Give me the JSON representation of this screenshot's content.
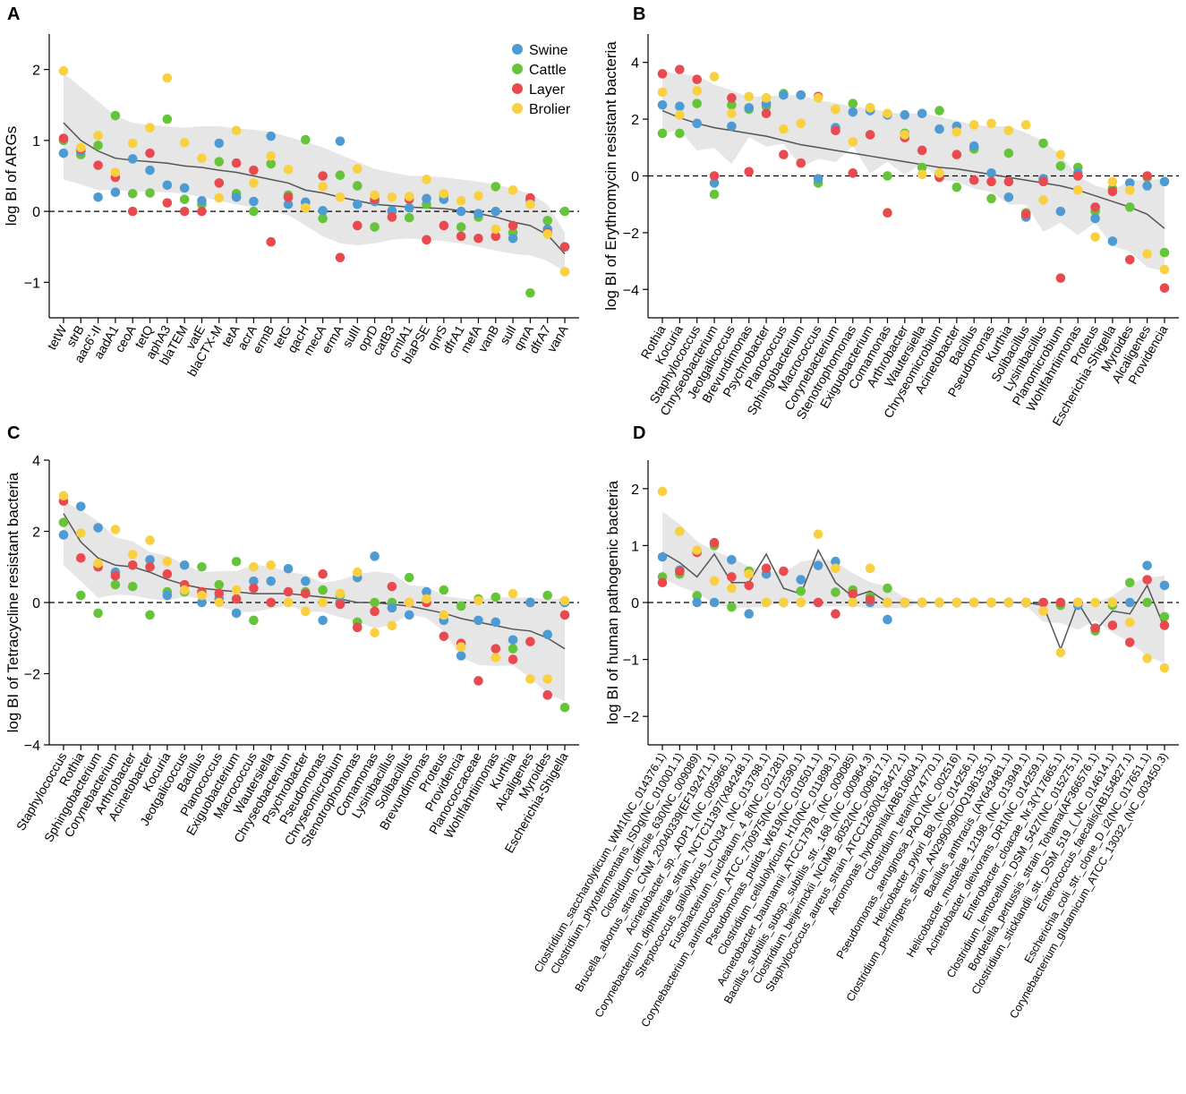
{
  "legend": {
    "labels": [
      "Swine",
      "Cattle",
      "Layer",
      "Brolier"
    ],
    "colors": [
      "#4e9bd4",
      "#66c43a",
      "#e84a50",
      "#f9d040"
    ]
  },
  "trend_color": "#555555",
  "band_color": "#e6e6e6",
  "chart_data": [
    {
      "type": "scatter",
      "panel_label": "A",
      "title": "",
      "xlabel": "",
      "ylabel": "log BI of ARGs",
      "ylim": [
        -1.5,
        2.5
      ],
      "yticks": [
        -1,
        0,
        1,
        2
      ],
      "categories": [
        "tetW",
        "strB",
        "aac6'-II",
        "aadA1",
        "ceoA",
        "tetQ",
        "aphA3",
        "blaTEM",
        "vatE",
        "blaCTX-M",
        "tetA",
        "acrA",
        "ermB",
        "tetG",
        "qacH",
        "mecA",
        "ermA",
        "sulII",
        "oprD",
        "catB3",
        "cmlA1",
        "blaPSE",
        "qnrS",
        "dfrA1",
        "mefA",
        "vanB",
        "sulI",
        "qnrA",
        "dfrA7",
        "vanA"
      ],
      "series": [
        {
          "name": "Swine",
          "values": [
            0.82,
            0.85,
            0.2,
            0.27,
            0.74,
            0.58,
            0.37,
            0.33,
            0.15,
            0.96,
            0.2,
            0.14,
            1.06,
            0.1,
            0.13,
            0.01,
            0.99,
            0.1,
            0.14,
            0.01,
            0.05,
            0.18,
            0.17,
            0.0,
            -0.03,
            0.0,
            -0.38,
            0.16,
            -0.25,
            -0.5
          ]
        },
        {
          "name": "Cattle",
          "values": [
            1.0,
            0.8,
            0.93,
            1.35,
            0.25,
            0.26,
            1.3,
            0.17,
            0.1,
            0.7,
            0.25,
            0.0,
            0.67,
            0.23,
            1.01,
            -0.1,
            0.51,
            0.36,
            -0.22,
            0.0,
            -0.09,
            0.1,
            0.23,
            -0.22,
            -0.08,
            0.35,
            -0.3,
            -1.15,
            -0.13,
            0.0
          ]
        },
        {
          "name": "Layer",
          "values": [
            1.03,
            0.88,
            0.65,
            0.48,
            0.0,
            0.82,
            0.12,
            0.0,
            0.0,
            0.4,
            0.68,
            0.58,
            -0.43,
            0.2,
            0.05,
            0.5,
            -0.65,
            -0.2,
            0.17,
            -0.08,
            0.17,
            -0.4,
            -0.2,
            -0.35,
            -0.38,
            -0.35,
            -0.2,
            0.19,
            -0.3,
            -0.5
          ]
        },
        {
          "name": "Brolier",
          "values": [
            1.98,
            0.9,
            1.07,
            0.55,
            0.96,
            1.18,
            1.88,
            0.97,
            0.75,
            0.19,
            1.14,
            0.4,
            0.78,
            0.59,
            0.05,
            0.35,
            0.2,
            0.6,
            0.23,
            0.2,
            0.21,
            0.45,
            0.25,
            0.15,
            0.22,
            -0.25,
            0.3,
            0.1,
            -0.32,
            -0.85
          ]
        }
      ],
      "trend": [
        1.25,
        1.0,
        0.85,
        0.75,
        0.72,
        0.7,
        0.68,
        0.64,
        0.62,
        0.58,
        0.55,
        0.5,
        0.45,
        0.4,
        0.3,
        0.26,
        0.2,
        0.15,
        0.1,
        0.08,
        0.06,
        0.05,
        0.04,
        0.01,
        -0.03,
        -0.08,
        -0.15,
        -0.2,
        -0.33,
        -0.6
      ],
      "band_upper": [
        1.95,
        1.75,
        1.55,
        1.35,
        1.25,
        1.22,
        1.2,
        1.18,
        1.2,
        1.2,
        1.17,
        1.15,
        1.12,
        1.05,
        0.98,
        0.9,
        0.8,
        0.7,
        0.6,
        0.55,
        0.5,
        0.5,
        0.48,
        0.45,
        0.42,
        0.38,
        0.32,
        0.25,
        0.1,
        -0.3
      ],
      "band_lower": [
        0.45,
        0.38,
        0.3,
        0.3,
        0.28,
        0.28,
        0.27,
        0.25,
        0.2,
        0.15,
        0.1,
        0.05,
        0.0,
        -0.05,
        -0.2,
        -0.35,
        -0.45,
        -0.48,
        -0.45,
        -0.4,
        -0.38,
        -0.4,
        -0.42,
        -0.45,
        -0.5,
        -0.55,
        -0.6,
        -0.62,
        -0.7,
        -0.85
      ]
    },
    {
      "type": "scatter",
      "panel_label": "B",
      "title": "",
      "xlabel": "",
      "ylabel": "log BI of Erythromycin resistant bacteria",
      "ylim": [
        -5,
        5
      ],
      "yticks": [
        -4,
        -2,
        0,
        2,
        4
      ],
      "categories": [
        "Rothia",
        "Kocuria",
        "Staphylococcus",
        "Chryseobacterium",
        "Jeotgalicoccus",
        "Brevundimonas",
        "Psychrobacter",
        "Planococcus",
        "Sphingobacterium",
        "Macrococcus",
        "Corynebacterium",
        "Stenotrophomonas",
        "Exiguobacterium",
        "Comamonas",
        "Arthrobacter",
        "Wautersiella",
        "Chryseomicrobium",
        "Acinetobacter",
        "Bacillus",
        "Pseudomonas",
        "Kurthia",
        "Solibacillus",
        "Lysinibacillus",
        "Planomicrobium",
        "Wohlfahrtiimonas",
        "Proteus",
        "Escherichia-Shigella",
        "Myroides",
        "Alcaligenes",
        "Providencia"
      ],
      "series": [
        {
          "name": "Swine",
          "values": [
            2.5,
            2.45,
            1.85,
            -0.25,
            1.75,
            2.4,
            2.55,
            2.85,
            2.85,
            -0.1,
            1.7,
            2.25,
            2.3,
            2.15,
            2.15,
            2.2,
            1.65,
            1.75,
            1.05,
            0.1,
            -0.75,
            -1.45,
            -0.1,
            -1.25,
            0.1,
            -1.5,
            -2.3,
            -0.25,
            -0.35,
            -0.2
          ]
        },
        {
          "name": "Cattle",
          "values": [
            1.5,
            1.5,
            2.55,
            -0.65,
            2.5,
            2.35,
            2.45,
            2.9,
            2.85,
            -0.25,
            2.35,
            2.55,
            2.4,
            0.0,
            1.5,
            0.3,
            2.3,
            -0.4,
            0.95,
            -0.8,
            0.8,
            -1.3,
            1.15,
            0.35,
            0.3,
            -1.25,
            -0.45,
            -1.1,
            -0.05,
            -2.7
          ]
        },
        {
          "name": "Layer",
          "values": [
            3.6,
            3.75,
            3.4,
            0.0,
            2.75,
            0.15,
            2.2,
            0.75,
            0.45,
            2.8,
            1.6,
            0.1,
            1.45,
            -1.3,
            1.35,
            0.9,
            -0.05,
            0.75,
            -0.15,
            -0.2,
            -0.2,
            -1.35,
            -0.2,
            -3.6,
            0.0,
            -1.1,
            -0.55,
            -2.95,
            0.0,
            -3.95
          ]
        },
        {
          "name": "Brolier",
          "values": [
            2.95,
            2.15,
            3.0,
            3.5,
            2.2,
            2.8,
            2.75,
            1.65,
            1.85,
            2.75,
            2.35,
            1.2,
            2.4,
            2.2,
            1.45,
            0.05,
            0.1,
            1.55,
            1.8,
            1.85,
            1.6,
            1.8,
            -0.85,
            0.75,
            -0.5,
            -2.15,
            -0.2,
            -0.5,
            -2.75,
            -3.3
          ]
        }
      ],
      "trend": [
        2.3,
        2.05,
        1.85,
        1.7,
        1.6,
        1.5,
        1.4,
        1.25,
        1.1,
        1.0,
        0.9,
        0.8,
        0.7,
        0.6,
        0.5,
        0.4,
        0.3,
        0.25,
        0.15,
        0.05,
        -0.05,
        -0.15,
        -0.25,
        -0.35,
        -0.5,
        -0.7,
        -0.9,
        -1.1,
        -1.35,
        -1.85
      ]
    },
    {
      "type": "scatter",
      "panel_label": "C",
      "title": "",
      "xlabel": "",
      "ylabel": "log BI of Tetracycline resistant bacteria",
      "ylim": [
        -4,
        4
      ],
      "yticks": [
        -4,
        -2,
        0,
        2,
        4
      ],
      "categories": [
        "Staphylococcus",
        "Rothia",
        "Sphingobacterium",
        "Corynebacterium",
        "Arthrobacter",
        "Acinetobacter",
        "Kocuria",
        "Jeotgalicoccus",
        "Bacillus",
        "Planococcus",
        "Exiguobacterium",
        "Macrococcus",
        "Wautersiella",
        "Chryseobacterium",
        "Psychrobacter",
        "Pseudomonas",
        "Chryseomicrobium",
        "Stenotrophomonas",
        "Comamonas",
        "Lysinibacillus",
        "Solibacillus",
        "Brevundimonas",
        "Proteus",
        "Providencia",
        "Planococcaceae",
        "Wohlfahrtiimonas",
        "Kurthia",
        "Alcaligenes",
        "Myroides",
        "Escherichia-Shigella"
      ],
      "series": [
        {
          "name": "Swine",
          "values": [
            1.9,
            2.7,
            2.1,
            0.85,
            1.05,
            1.2,
            0.2,
            1.05,
            0.0,
            0.1,
            -0.3,
            0.6,
            0.6,
            0.95,
            0.6,
            -0.5,
            0.0,
            0.7,
            1.3,
            -0.15,
            -0.35,
            0.3,
            -0.5,
            -1.5,
            -0.5,
            -0.55,
            -1.05,
            0.0,
            -0.9,
            0.0
          ]
        },
        {
          "name": "Cattle",
          "values": [
            2.25,
            0.2,
            -0.3,
            0.5,
            0.45,
            -0.35,
            0.3,
            0.3,
            1.0,
            0.5,
            1.15,
            -0.5,
            0.0,
            0.0,
            0.3,
            0.35,
            0.2,
            -0.55,
            0.0,
            0.0,
            0.7,
            0.0,
            0.35,
            -0.1,
            0.1,
            0.15,
            -1.3,
            0.0,
            0.2,
            -2.95
          ]
        },
        {
          "name": "Layer",
          "values": [
            2.85,
            1.25,
            1.0,
            0.75,
            1.05,
            1.0,
            0.8,
            0.5,
            0.3,
            0.25,
            0.1,
            0.4,
            0.0,
            0.3,
            0.25,
            0.8,
            -0.05,
            -0.7,
            -0.25,
            0.45,
            0.0,
            0.0,
            -0.95,
            -1.15,
            -2.2,
            -1.3,
            -1.6,
            -1.1,
            -2.6,
            -0.35
          ]
        },
        {
          "name": "Brolier",
          "values": [
            3.0,
            1.95,
            1.1,
            2.05,
            1.35,
            1.75,
            1.15,
            0.35,
            0.2,
            0.0,
            0.35,
            1.0,
            1.05,
            0.0,
            -0.25,
            0.0,
            0.25,
            0.85,
            -0.85,
            -0.65,
            0.0,
            0.1,
            -0.35,
            -1.25,
            0.05,
            -1.55,
            0.25,
            -2.15,
            -2.15,
            0.05
          ]
        }
      ],
      "trend": [
        2.5,
        1.7,
        1.25,
        1.05,
        1.0,
        0.85,
        0.65,
        0.5,
        0.4,
        0.35,
        0.3,
        0.25,
        0.25,
        0.25,
        0.2,
        0.15,
        0.1,
        0.0,
        0.0,
        -0.05,
        -0.1,
        -0.2,
        -0.3,
        -0.45,
        -0.55,
        -0.65,
        -0.75,
        -0.8,
        -1.0,
        -1.3
      ]
    },
    {
      "type": "scatter",
      "panel_label": "D",
      "title": "",
      "xlabel": "",
      "ylabel": "log BI of human pathogenic bacteria",
      "ylim": [
        -2.5,
        2.5
      ],
      "yticks": [
        -2,
        -1,
        0,
        1,
        2
      ],
      "categories": [
        "Clostridium_saccharolyticum_WM1(NC_014376.1)",
        "Clostridium_phytofermentans_ISDg(NC_010001.1)",
        "Clostridium_difficile_630(NC_009089)",
        "Brucella_abortus_strain_CNM_20040339(EF192471.1)",
        "Acinetobacter_sp._ADP1_(NC_005966.1)",
        "Corynebacterium_diphtheriae_strain_NCTC11397(X84248.1)",
        "Streptococcus_gallolyticus_UCN34_(NC_013798.1)",
        "Fusobacterium_nucleatum_4_8(NC_021281)",
        "Corynebacterium_aurimucosum_ATCC_700975(NC_012590.1)",
        "Pseudomonas_putida_W619(NC_010501.1)",
        "Clostridium_cellulolyticum_H10(NC_011898.1)",
        "Acinetobacter_baumannii_ATCC17978_(NC_009085)",
        "Bacillus_subtilis_subsp._subtilis_str._168_(NC_000964.3)",
        "Clostridium_beijerinckii_NCIMB_8052(NC_009617.1)",
        "Staphylococcus_aureus_strain_ATCC12600(L36472.1)",
        "Aeromonas_hydrophila(AB610604.1)",
        "Clostridium_tetani(X74770.1)",
        "Pseudomonas_aeruginosa_PAO1(NC_002516)",
        "Helicobacter_pylori_B8_(NC_014256.1)",
        "Clostridium_perfringens_strain_AN2990/99(DQ196135.1)",
        "Bacillus_anthracis_(AY643481.1)",
        "Helicobacter_mustelae_12198_(NC_013949.1)",
        "Acinetobacter_oleivorans_DR1(NC_014259.1)",
        "Enterobacter_cloacae_Nr.3(Y17665.1)",
        "Clostridium_lentocellum_DSM_5427(NC_015275.1)",
        "Bordetella_pertussis_strain_Tohama(AF366576.1)",
        "Clostridium_sticklandii_str._DSM_519_(_NC_014614.1)",
        "Enterococcus_faecalis(AB154827.1)",
        "Escherichia_coli_str._clone_D_i2(NC_017651.1)",
        "Corynebacterium_glutamicum_ATCC_13032_(NC_003450.3)"
      ],
      "series": [
        {
          "name": "Swine",
          "values": [
            0.8,
            0.57,
            0.0,
            0.0,
            0.75,
            -0.2,
            0.5,
            0.0,
            0.4,
            0.65,
            0.72,
            0.0,
            0.0,
            -0.3,
            0.0,
            0.0,
            0.0,
            0.0,
            0.0,
            0.0,
            0.0,
            0.0,
            0.0,
            0.0,
            -0.05,
            -0.45,
            0.0,
            0.0,
            0.65,
            0.3
          ]
        },
        {
          "name": "Cattle",
          "values": [
            0.45,
            0.5,
            0.12,
            1.0,
            -0.08,
            0.55,
            0.0,
            0.0,
            0.2,
            0.0,
            0.18,
            0.22,
            0.1,
            0.25,
            0.0,
            0.0,
            0.0,
            0.0,
            0.0,
            0.0,
            0.0,
            0.0,
            0.0,
            -0.05,
            0.0,
            -0.5,
            -0.05,
            0.35,
            0.0,
            -0.25
          ]
        },
        {
          "name": "Layer",
          "values": [
            0.35,
            0.55,
            0.88,
            1.05,
            0.45,
            0.3,
            0.6,
            0.55,
            0.0,
            0.0,
            -0.2,
            0.15,
            0.05,
            0.0,
            0.0,
            0.0,
            0.0,
            0.0,
            0.0,
            0.0,
            0.0,
            0.0,
            0.0,
            0.0,
            0.0,
            -0.45,
            -0.4,
            -0.7,
            0.4,
            -0.4
          ]
        },
        {
          "name": "Brolier",
          "values": [
            1.95,
            1.25,
            0.92,
            0.38,
            0.25,
            0.5,
            0.0,
            0.0,
            0.0,
            1.2,
            0.6,
            0.0,
            0.6,
            0.0,
            0.0,
            0.0,
            0.0,
            0.0,
            0.0,
            0.0,
            0.0,
            0.0,
            -0.15,
            -0.88,
            0.0,
            0.0,
            0.0,
            -0.35,
            -0.98,
            -1.15
          ]
        }
      ],
      "trend": [
        0.88,
        0.7,
        0.45,
        0.85,
        0.35,
        0.35,
        0.85,
        0.25,
        0.15,
        0.92,
        0.35,
        0.1,
        0.2,
        0.0,
        0.0,
        0.0,
        0.0,
        0.0,
        0.0,
        0.0,
        0.0,
        0.0,
        -0.05,
        -0.82,
        0.0,
        -0.5,
        -0.15,
        -0.2,
        0.3,
        -0.45
      ]
    }
  ]
}
